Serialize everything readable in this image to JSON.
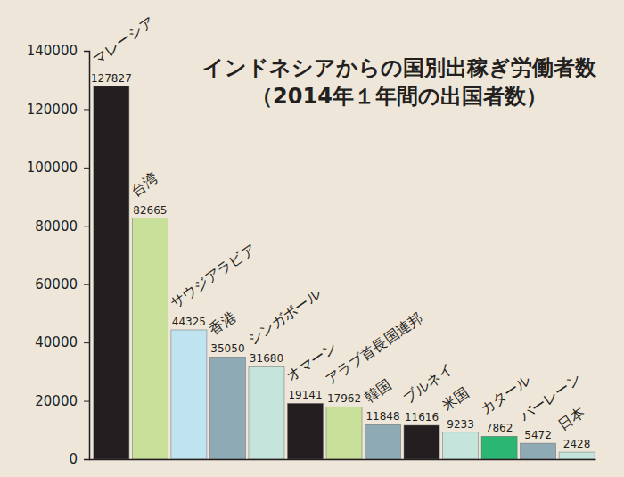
{
  "chart_data": {
    "type": "bar",
    "title": "インドネシアからの国別出稼ぎ労働者数",
    "subtitle": "（2014年１年間の出国者数）",
    "categories": [
      "マレーシア",
      "台湾",
      "サウジアラビア",
      "香港",
      "シンガポール",
      "オマーン",
      "アラブ首長国連邦",
      "韓国",
      "ブルネイ",
      "米国",
      "カタール",
      "バーレーン",
      "日本"
    ],
    "values": [
      127827,
      82665,
      44325,
      35050,
      31680,
      19141,
      17962,
      11848,
      11616,
      9233,
      7862,
      5472,
      2428
    ],
    "colors": [
      "#231f20",
      "#c8e09a",
      "#bfe4ef",
      "#8eaab5",
      "#c4e4dc",
      "#231f20",
      "#c8e09a",
      "#8eaab5",
      "#231f20",
      "#c4e4dc",
      "#2bb673",
      "#8eaab5",
      "#c4e4dc"
    ],
    "ylim": [
      0,
      140000
    ],
    "yticks": [
      0,
      20000,
      40000,
      60000,
      80000,
      100000,
      120000,
      140000
    ],
    "data_labels": true,
    "tick_labels": "y",
    "grid": false
  }
}
